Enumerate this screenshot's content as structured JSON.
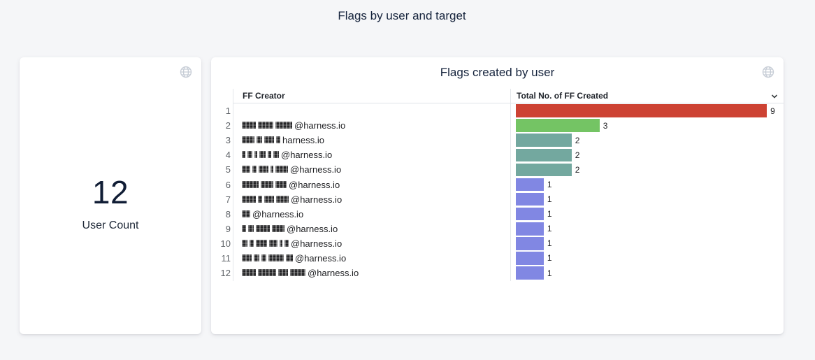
{
  "page": {
    "title": "Flags by user and target",
    "background_color": "#f5f6f8"
  },
  "icons": {
    "globe": "globe-icon (timezone indicator)",
    "chevron": "chevron-down-icon (column menu)"
  },
  "user_count_card": {
    "value": "12",
    "label": "User Count"
  },
  "flags_card": {
    "title": "Flags created by user",
    "columns": {
      "creator": "FF Creator",
      "total": "Total No. of FF Created"
    },
    "rows": [
      {
        "rank": "1",
        "creator_visible": "",
        "redacted": false,
        "redacted_segments": [],
        "value": 9,
        "color": "#cd4233"
      },
      {
        "rank": "2",
        "creator_visible": "@harness.io",
        "redacted": true,
        "redacted_segments": [
          20,
          22,
          24
        ],
        "value": 3,
        "color": "#74c464"
      },
      {
        "rank": "3",
        "creator_visible": "harness.io",
        "redacted": true,
        "redacted_segments": [
          18,
          8,
          14,
          6
        ],
        "value": 2,
        "color": "#73a89f"
      },
      {
        "rank": "4",
        "creator_visible": "@harness.io",
        "redacted": true,
        "redacted_segments": [
          5,
          7,
          4,
          9,
          5,
          8
        ],
        "value": 2,
        "color": "#73a89f"
      },
      {
        "rank": "5",
        "creator_visible": "@harness.io",
        "redacted": true,
        "redacted_segments": [
          12,
          6,
          14,
          4,
          18
        ],
        "value": 2,
        "color": "#73a89f"
      },
      {
        "rank": "6",
        "creator_visible": "@harness.io",
        "redacted": true,
        "redacted_segments": [
          24,
          18,
          16
        ],
        "value": 1,
        "color": "#8187e3"
      },
      {
        "rank": "7",
        "creator_visible": "@harness.io",
        "redacted": true,
        "redacted_segments": [
          20,
          6,
          14,
          18
        ],
        "value": 1,
        "color": "#8187e3"
      },
      {
        "rank": "8",
        "creator_visible": "@harness.io",
        "redacted": true,
        "redacted_segments": [
          12
        ],
        "value": 1,
        "color": "#8187e3"
      },
      {
        "rank": "9",
        "creator_visible": "@harness.io",
        "redacted": true,
        "redacted_segments": [
          6,
          8,
          20,
          18
        ],
        "value": 1,
        "color": "#8187e3"
      },
      {
        "rank": "10",
        "creator_visible": "@harness.io",
        "redacted": true,
        "redacted_segments": [
          8,
          6,
          16,
          12,
          4,
          6
        ],
        "value": 1,
        "color": "#8187e3"
      },
      {
        "rank": "11",
        "creator_visible": "@harness.io",
        "redacted": true,
        "redacted_segments": [
          14,
          8,
          7,
          22,
          10
        ],
        "value": 1,
        "color": "#8187e3"
      },
      {
        "rank": "12",
        "creator_visible": "@harness.io",
        "redacted": true,
        "redacted_segments": [
          20,
          26,
          14,
          22
        ],
        "value": 1,
        "color": "#8187e3"
      }
    ]
  },
  "chart_data": [
    {
      "type": "bar",
      "orientation": "horizontal",
      "title": "Flags created by user",
      "xlabel": "Total No. of FF Created",
      "ylabel": "FF Creator",
      "categories": [
        "",
        "@harness.io",
        "harness.io",
        "@harness.io",
        "@harness.io",
        "@harness.io",
        "@harness.io",
        "@harness.io",
        "@harness.io",
        "@harness.io",
        "@harness.io",
        "@harness.io"
      ],
      "values": [
        9,
        3,
        2,
        2,
        2,
        1,
        1,
        1,
        1,
        1,
        1,
        1
      ],
      "data_labels": [
        9,
        3,
        2,
        2,
        2,
        1,
        1,
        1,
        1,
        1,
        1,
        1
      ],
      "bar_colors": [
        "#cd4233",
        "#74c464",
        "#73a89f",
        "#73a89f",
        "#73a89f",
        "#8187e3",
        "#8187e3",
        "#8187e3",
        "#8187e3",
        "#8187e3",
        "#8187e3",
        "#8187e3"
      ],
      "xlim": [
        0,
        9.5
      ],
      "grid": false,
      "legend": false
    },
    {
      "type": "table",
      "title": "User Count",
      "values": [
        12
      ]
    }
  ]
}
